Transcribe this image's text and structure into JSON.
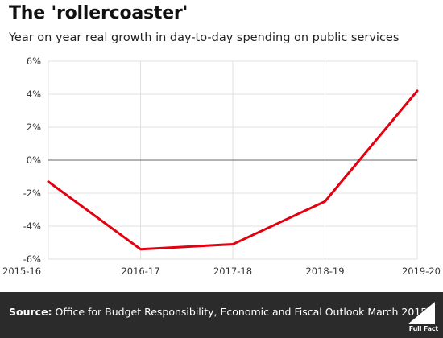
{
  "header": {
    "title": "The 'rollercoaster'",
    "subtitle": "Year on year real growth in day-to-day spending on public services"
  },
  "footer": {
    "source_label": "Source:",
    "source_text": " Office for Budget Responsibility, Economic and Fiscal Outlook March 2015",
    "logo_text": "Full Fact"
  },
  "colors": {
    "line": "#e3000f",
    "grid": "#e1e1e1",
    "zero": "#666666",
    "footer_bg": "#2b2b2b"
  },
  "chart_data": {
    "type": "line",
    "categories": [
      "2015-16",
      "2016-17",
      "2017-18",
      "2018-19",
      "2019-20"
    ],
    "series": [
      {
        "values": [
          -1.3,
          -5.4,
          -5.1,
          -2.5,
          4.2
        ]
      }
    ],
    "ylim": [
      -6,
      6
    ],
    "yticks": [
      6,
      4,
      2,
      0,
      -2,
      -4,
      -6
    ],
    "ytick_labels": [
      "6%",
      "4%",
      "2%",
      "0%",
      "-2%",
      "-4%",
      "-6%"
    ],
    "grid": true
  }
}
